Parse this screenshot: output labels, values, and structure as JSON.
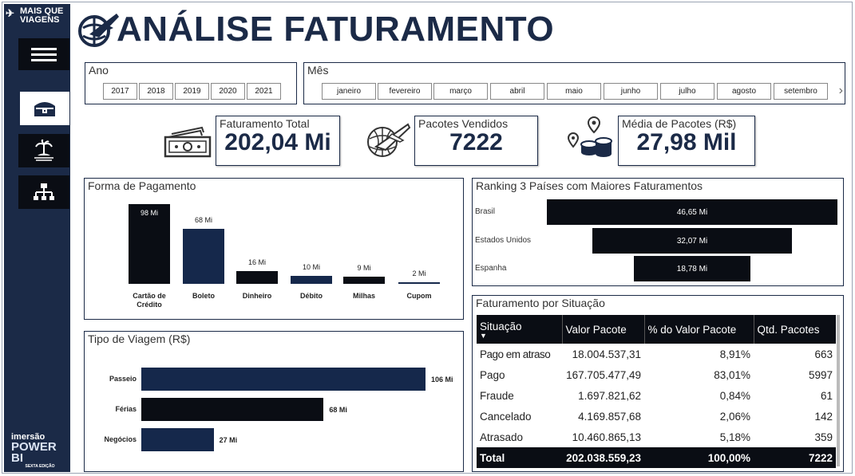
{
  "brand": {
    "logo_line1": "MAIS QUE",
    "logo_line2": "VIAGENS",
    "footer_line1": "imersão",
    "footer_line2": "POWER BI",
    "footer_line3": "SEXTA EDIÇÃO"
  },
  "page_title": "ANÁLISE FATURAMENTO",
  "nav": {
    "icons": [
      "menu-icon",
      "treasure-chest-icon",
      "beach-island-icon",
      "org-chart-icon"
    ]
  },
  "ano": {
    "title": "Ano",
    "options": [
      "2017",
      "2018",
      "2019",
      "2020",
      "2021"
    ]
  },
  "mes": {
    "title": "Mês",
    "options": [
      "janeiro",
      "fevereiro",
      "março",
      "abril",
      "maio",
      "junho",
      "julho",
      "agosto",
      "setembro"
    ],
    "next": "›"
  },
  "kpis": {
    "faturamento": {
      "label": "Faturamento Total",
      "value": "202,04 Mi"
    },
    "pacotes": {
      "label": "Pacotes Vendidos",
      "value": "7222"
    },
    "media": {
      "label": "Média de Pacotes (R$)",
      "value": "27,98 Mil"
    }
  },
  "colors": {
    "navy": "#1b2a47",
    "black": "#0a0d14",
    "dark_blue": "#15284b"
  },
  "chart_data": [
    {
      "type": "bar",
      "title": "Forma de Pagamento",
      "categories": [
        "Cartão de Crédito",
        "Boleto",
        "Dinheiro",
        "Débito",
        "Milhas",
        "Cupom"
      ],
      "values": [
        98,
        68,
        16,
        10,
        9,
        2
      ],
      "data_labels": [
        "98 Mi",
        "68 Mi",
        "16 Mi",
        "10 Mi",
        "9 Mi",
        "2 Mi"
      ],
      "bar_colors": [
        "#0a0d14",
        "#15284b",
        "#0a0d14",
        "#15284b",
        "#0a0d14",
        "#15284b"
      ]
    },
    {
      "type": "bar",
      "orientation": "horizontal",
      "title": "Tipo de Viagem (R$)",
      "categories": [
        "Passeio",
        "Férias",
        "Negócios"
      ],
      "values": [
        106,
        68,
        27
      ],
      "data_labels": [
        "106 Mi",
        "68 Mi",
        "27 Mi"
      ],
      "bar_colors": [
        "#15284b",
        "#0a0d14",
        "#15284b"
      ]
    },
    {
      "type": "bar",
      "orientation": "horizontal",
      "style": "funnel",
      "title": "Ranking 3 Países com Maiores Faturamentos",
      "categories": [
        "Brasil",
        "Estados Unidos",
        "Espanha"
      ],
      "values": [
        46.65,
        32.07,
        18.78
      ],
      "data_labels": [
        "46,65 Mi",
        "32,07 Mi",
        "18,78 Mi"
      ]
    }
  ],
  "situacao": {
    "title": "Faturamento por Situação",
    "columns": [
      "Situação",
      "Valor Pacote",
      "% do Valor Pacote",
      "Qtd. Pacotes"
    ],
    "rows": [
      [
        "Pago em atraso",
        "18.004.537,31",
        "8,91%",
        "663"
      ],
      [
        "Pago",
        "167.705.477,49",
        "83,01%",
        "5997"
      ],
      [
        "Fraude",
        "1.697.821,62",
        "0,84%",
        "61"
      ],
      [
        "Cancelado",
        "4.169.857,68",
        "2,06%",
        "142"
      ],
      [
        "Atrasado",
        "10.460.865,13",
        "5,18%",
        "359"
      ]
    ],
    "total": [
      "Total",
      "202.038.559,23",
      "100,00%",
      "7222"
    ]
  }
}
